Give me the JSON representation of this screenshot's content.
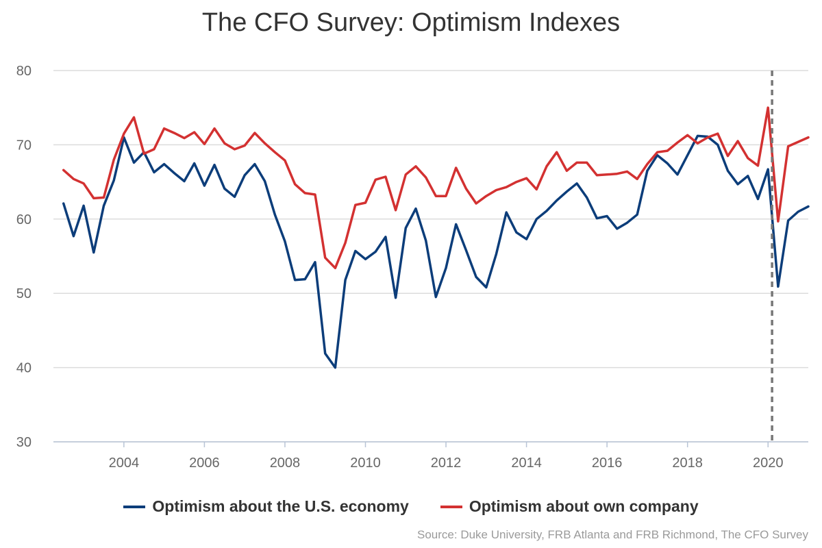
{
  "chart_data": {
    "type": "line",
    "title": "The CFO Survey: Optimism Indexes",
    "source": "Source: Duke University, FRB Atlanta and FRB Richmond, The CFO Survey",
    "xlabel": "",
    "ylabel": "",
    "xlim": [
      2002.25,
      2021.0
    ],
    "ylim": [
      30,
      80
    ],
    "yticks": [
      80,
      70,
      60,
      50,
      40,
      30
    ],
    "xticks": [
      2004,
      2006,
      2008,
      2010,
      2012,
      2014,
      2016,
      2018,
      2020
    ],
    "grid": "horizontal",
    "legend_position": "bottom",
    "vertical_line": {
      "x": 2020.1,
      "style": "dashed",
      "color": "#777777"
    },
    "series": [
      {
        "name": "Optimism about the U.S. economy",
        "color": "#0c3d7a",
        "x": [
          2002.5,
          2002.75,
          2003.0,
          2003.25,
          2003.5,
          2003.75,
          2004.0,
          2004.25,
          2004.5,
          2004.75,
          2005.0,
          2005.25,
          2005.5,
          2005.75,
          2006.0,
          2006.25,
          2006.5,
          2006.75,
          2007.0,
          2007.25,
          2007.5,
          2007.75,
          2008.0,
          2008.25,
          2008.5,
          2008.75,
          2009.0,
          2009.25,
          2009.5,
          2009.75,
          2010.0,
          2010.25,
          2010.5,
          2010.75,
          2011.0,
          2011.25,
          2011.5,
          2011.75,
          2012.0,
          2012.25,
          2012.5,
          2012.75,
          2013.0,
          2013.25,
          2013.5,
          2013.75,
          2014.0,
          2014.25,
          2014.5,
          2014.75,
          2015.0,
          2015.25,
          2015.5,
          2015.75,
          2016.0,
          2016.25,
          2016.5,
          2016.75,
          2017.0,
          2017.25,
          2017.5,
          2017.75,
          2018.0,
          2018.25,
          2018.5,
          2018.75,
          2019.0,
          2019.25,
          2019.5,
          2019.75,
          2020.0,
          2020.25,
          2020.5,
          2020.75,
          2021.0
        ],
        "values": [
          62.1,
          57.7,
          61.8,
          55.5,
          61.8,
          65.2,
          71.0,
          67.6,
          69.0,
          66.3,
          67.4,
          66.2,
          65.1,
          67.5,
          64.5,
          67.3,
          64.1,
          63.0,
          65.9,
          67.4,
          65.1,
          60.6,
          57.0,
          51.8,
          51.9,
          54.2,
          41.9,
          40.0,
          51.8,
          55.7,
          54.6,
          55.6,
          57.6,
          49.4,
          58.8,
          61.4,
          57.1,
          49.5,
          53.4,
          59.3,
          55.8,
          52.2,
          50.8,
          55.3,
          60.9,
          58.2,
          57.3,
          60.0,
          61.1,
          62.5,
          63.7,
          64.8,
          62.9,
          60.1,
          60.4,
          58.7,
          59.5,
          60.6,
          66.5,
          68.6,
          67.5,
          66.0,
          68.6,
          71.2,
          71.1,
          70.0,
          66.5,
          64.7,
          65.8,
          62.7,
          66.7,
          50.9,
          59.8,
          61.0,
          61.7
        ]
      },
      {
        "name": "Optimism about own company",
        "color": "#d33131",
        "x": [
          2002.5,
          2002.75,
          2003.0,
          2003.25,
          2003.5,
          2003.75,
          2004.0,
          2004.25,
          2004.5,
          2004.75,
          2005.0,
          2005.25,
          2005.5,
          2005.75,
          2006.0,
          2006.25,
          2006.5,
          2006.75,
          2007.0,
          2007.25,
          2007.5,
          2007.75,
          2008.0,
          2008.25,
          2008.5,
          2008.75,
          2009.0,
          2009.25,
          2009.5,
          2009.75,
          2010.0,
          2010.25,
          2010.5,
          2010.75,
          2011.0,
          2011.25,
          2011.5,
          2011.75,
          2012.0,
          2012.25,
          2012.5,
          2012.75,
          2013.0,
          2013.25,
          2013.5,
          2013.75,
          2014.0,
          2014.25,
          2014.5,
          2014.75,
          2015.0,
          2015.25,
          2015.5,
          2015.75,
          2016.0,
          2016.25,
          2016.5,
          2016.75,
          2017.0,
          2017.25,
          2017.5,
          2017.75,
          2018.0,
          2018.25,
          2018.5,
          2018.75,
          2019.0,
          2019.25,
          2019.5,
          2019.75,
          2020.0,
          2020.25,
          2020.5,
          2020.75,
          2021.0
        ],
        "values": [
          66.6,
          65.4,
          64.8,
          62.8,
          62.9,
          68.0,
          71.5,
          73.7,
          68.8,
          69.4,
          72.2,
          71.6,
          70.9,
          71.7,
          70.1,
          72.2,
          70.2,
          69.4,
          69.9,
          71.6,
          70.2,
          69.0,
          67.9,
          64.7,
          63.5,
          63.3,
          54.8,
          53.4,
          56.8,
          61.9,
          62.2,
          65.3,
          65.7,
          61.2,
          66.0,
          67.1,
          65.6,
          63.1,
          63.1,
          66.9,
          64.1,
          62.1,
          63.1,
          63.9,
          64.3,
          65.0,
          65.5,
          64.0,
          67.1,
          69.0,
          66.5,
          67.6,
          67.6,
          65.9,
          66.0,
          66.1,
          66.4,
          65.4,
          67.4,
          69.0,
          69.2,
          70.3,
          71.3,
          70.2,
          71.0,
          71.5,
          68.5,
          70.5,
          68.2,
          67.2,
          75.0,
          59.7,
          69.8,
          70.4,
          71.0
        ]
      }
    ]
  }
}
